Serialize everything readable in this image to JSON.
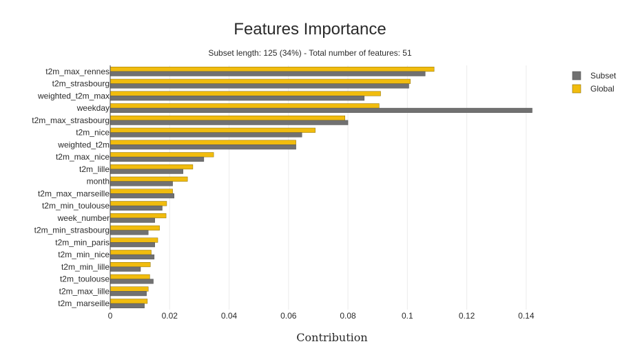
{
  "chart_data": {
    "type": "bar",
    "orientation": "horizontal",
    "title": "Features Importance",
    "subtitle": "Subset length: 125 (34%) - Total number of features: 51",
    "xlabel": "Contribution",
    "ylabel": "",
    "xlim": [
      0,
      0.15
    ],
    "xticks": [
      0,
      0.02,
      0.04,
      0.06,
      0.08,
      0.1,
      0.12,
      0.14
    ],
    "xtick_labels": [
      "0",
      "0.02",
      "0.04",
      "0.06",
      "0.08",
      "0.1",
      "0.12",
      "0.14"
    ],
    "grid": true,
    "legend_position": "top-right",
    "categories": [
      "t2m_max_rennes",
      "t2m_strasbourg",
      "weighted_t2m_max",
      "weekday",
      "t2m_max_strasbourg",
      "t2m_nice",
      "weighted_t2m",
      "t2m_max_nice",
      "t2m_lille",
      "month",
      "t2m_max_marseille",
      "t2m_min_toulouse",
      "week_number",
      "t2m_min_strasbourg",
      "t2m_min_paris",
      "t2m_min_nice",
      "t2m_min_lille",
      "t2m_toulouse",
      "t2m_max_lille",
      "t2m_marseille"
    ],
    "series": [
      {
        "name": "Subset",
        "color": "#717171",
        "values": [
          0.106,
          0.1005,
          0.0855,
          0.142,
          0.08,
          0.0645,
          0.0625,
          0.0315,
          0.0245,
          0.021,
          0.0215,
          0.0175,
          0.015,
          0.0128,
          0.015,
          0.0148,
          0.0102,
          0.0145,
          0.0122,
          0.0115
        ]
      },
      {
        "name": "Global",
        "color": "#f1bc0e",
        "values": [
          0.109,
          0.101,
          0.091,
          0.0905,
          0.079,
          0.069,
          0.0625,
          0.0348,
          0.0278,
          0.026,
          0.021,
          0.019,
          0.0188,
          0.0166,
          0.016,
          0.0138,
          0.0135,
          0.0133,
          0.0128,
          0.0125
        ]
      }
    ]
  }
}
